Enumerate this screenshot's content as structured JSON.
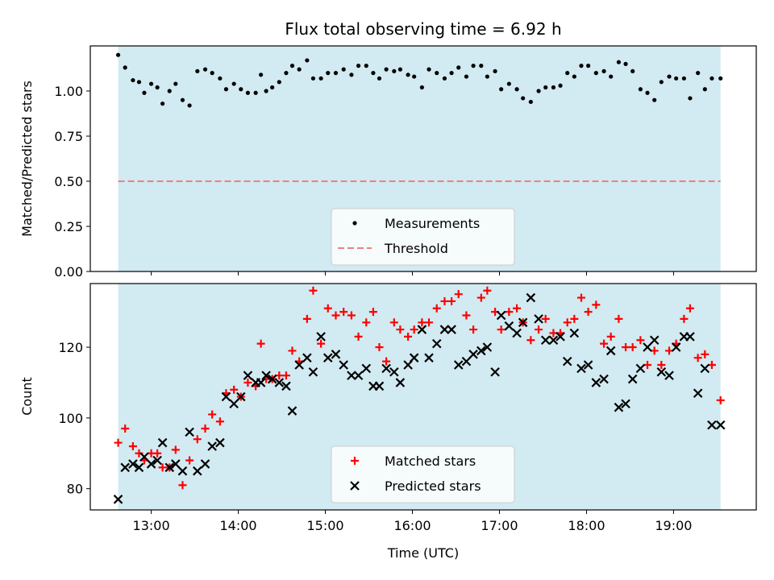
{
  "chart_data": [
    {
      "type": "scatter",
      "title": "Flux total observing time = 6.92 h",
      "ylabel": "Matched/Predicted stars",
      "xlabel": "",
      "xlim": [
        12.3,
        19.95
      ],
      "ylim": [
        0.0,
        1.25
      ],
      "y_ticks": [
        "0.00",
        "0.25",
        "0.50",
        "0.75",
        "1.00"
      ],
      "x_ticks": [
        "13:00",
        "14:00",
        "15:00",
        "16:00",
        "17:00",
        "18:00",
        "19:00"
      ],
      "x_tick_labels_visible": false,
      "observing_window": [
        12.62,
        19.54
      ],
      "observing_window_color": "#add8e6",
      "legend_position": "bottom-center",
      "threshold": {
        "name": "Threshold",
        "y": 0.5,
        "color": "#f08080",
        "style": "dashed"
      },
      "series": [
        {
          "name": "Measurements",
          "marker": "dot",
          "color": "#000000",
          "x": [
            12.62,
            12.7,
            12.79,
            12.86,
            12.92,
            13.0,
            13.07,
            13.13,
            13.21,
            13.28,
            13.36,
            13.44,
            13.53,
            13.62,
            13.7,
            13.79,
            13.86,
            13.95,
            14.03,
            14.11,
            14.2,
            14.26,
            14.32,
            14.39,
            14.47,
            14.55,
            14.62,
            14.7,
            14.79,
            14.86,
            14.95,
            15.03,
            15.12,
            15.21,
            15.3,
            15.38,
            15.47,
            15.55,
            15.62,
            15.7,
            15.79,
            15.86,
            15.95,
            16.02,
            16.11,
            16.19,
            16.28,
            16.37,
            16.45,
            16.53,
            16.62,
            16.7,
            16.79,
            16.86,
            16.95,
            17.02,
            17.11,
            17.2,
            17.27,
            17.36,
            17.45,
            17.53,
            17.62,
            17.7,
            17.78,
            17.86,
            17.94,
            18.02,
            18.11,
            18.2,
            18.28,
            18.37,
            18.45,
            18.53,
            18.62,
            18.7,
            18.78,
            18.86,
            18.95,
            19.03,
            19.12,
            19.19,
            19.28,
            19.36,
            19.44,
            19.54
          ],
          "y": [
            1.2,
            1.13,
            1.06,
            1.05,
            0.99,
            1.04,
            1.02,
            0.93,
            1.0,
            1.04,
            0.95,
            0.92,
            1.11,
            1.12,
            1.1,
            1.07,
            1.01,
            1.04,
            1.01,
            0.99,
            0.99,
            1.09,
            1.0,
            1.02,
            1.05,
            1.1,
            1.14,
            1.12,
            1.17,
            1.07,
            1.07,
            1.1,
            1.1,
            1.12,
            1.09,
            1.14,
            1.14,
            1.1,
            1.07,
            1.12,
            1.11,
            1.12,
            1.09,
            1.08,
            1.02,
            1.12,
            1.1,
            1.07,
            1.1,
            1.13,
            1.08,
            1.14,
            1.14,
            1.08,
            1.11,
            1.01,
            1.04,
            1.01,
            0.96,
            0.94,
            1.0,
            1.02,
            1.02,
            1.03,
            1.1,
            1.08,
            1.14,
            1.14,
            1.1,
            1.11,
            1.08,
            1.16,
            1.15,
            1.11,
            1.01,
            0.99,
            0.95,
            1.05,
            1.08,
            1.07,
            1.07,
            0.96,
            1.1,
            1.01,
            1.07,
            1.07
          ]
        }
      ]
    },
    {
      "type": "scatter",
      "title": "",
      "ylabel": "Count",
      "xlabel": "Time (UTC)",
      "xlim": [
        12.3,
        19.95
      ],
      "ylim": [
        74,
        138
      ],
      "y_ticks": [
        "80",
        "100",
        "120"
      ],
      "x_ticks": [
        "13:00",
        "14:00",
        "15:00",
        "16:00",
        "17:00",
        "18:00",
        "19:00"
      ],
      "x_tick_values": [
        13,
        14,
        15,
        16,
        17,
        18,
        19
      ],
      "observing_window": [
        12.62,
        19.54
      ],
      "observing_window_color": "#add8e6",
      "legend_position": "bottom-center",
      "series": [
        {
          "name": "Matched stars",
          "marker": "plus",
          "color": "#ff0000",
          "x": [
            12.62,
            12.7,
            12.79,
            12.86,
            12.92,
            13.0,
            13.07,
            13.13,
            13.21,
            13.28,
            13.36,
            13.44,
            13.53,
            13.62,
            13.7,
            13.79,
            13.86,
            13.95,
            14.03,
            14.11,
            14.2,
            14.26,
            14.32,
            14.39,
            14.47,
            14.55,
            14.62,
            14.7,
            14.79,
            14.86,
            14.95,
            15.03,
            15.12,
            15.21,
            15.3,
            15.38,
            15.47,
            15.55,
            15.62,
            15.7,
            15.79,
            15.86,
            15.95,
            16.02,
            16.11,
            16.19,
            16.28,
            16.37,
            16.45,
            16.53,
            16.62,
            16.7,
            16.79,
            16.86,
            16.95,
            17.02,
            17.11,
            17.2,
            17.27,
            17.36,
            17.45,
            17.53,
            17.62,
            17.7,
            17.78,
            17.86,
            17.94,
            18.02,
            18.11,
            18.2,
            18.28,
            18.37,
            18.45,
            18.53,
            18.62,
            18.7,
            18.78,
            18.86,
            18.95,
            19.03,
            19.12,
            19.19,
            19.28,
            19.36,
            19.44,
            19.54
          ],
          "y": [
            93,
            97,
            92,
            90,
            88,
            90,
            90,
            86,
            86,
            91,
            81,
            88,
            94,
            97,
            101,
            99,
            107,
            108,
            106,
            110,
            109,
            121,
            111,
            111,
            112,
            112,
            119,
            116,
            128,
            136,
            121,
            131,
            129,
            130,
            129,
            123,
            127,
            130,
            120,
            116,
            127,
            125,
            123,
            125,
            127,
            127,
            131,
            133,
            133,
            135,
            129,
            125,
            134,
            136,
            130,
            125,
            130,
            131,
            127,
            122,
            125,
            128,
            124,
            124,
            127,
            128,
            134,
            130,
            132,
            121,
            123,
            128,
            120,
            120,
            122,
            115,
            119,
            115,
            119,
            121,
            128,
            131,
            117,
            118,
            115,
            105
          ]
        },
        {
          "name": "Predicted stars",
          "marker": "x",
          "color": "#000000",
          "x": [
            12.62,
            12.7,
            12.79,
            12.86,
            12.92,
            13.0,
            13.07,
            13.13,
            13.21,
            13.28,
            13.36,
            13.44,
            13.53,
            13.62,
            13.7,
            13.79,
            13.86,
            13.95,
            14.03,
            14.11,
            14.2,
            14.26,
            14.32,
            14.39,
            14.47,
            14.55,
            14.62,
            14.7,
            14.79,
            14.86,
            14.95,
            15.03,
            15.12,
            15.21,
            15.3,
            15.38,
            15.47,
            15.55,
            15.62,
            15.7,
            15.79,
            15.86,
            15.95,
            16.02,
            16.11,
            16.19,
            16.28,
            16.37,
            16.45,
            16.53,
            16.62,
            16.7,
            16.79,
            16.86,
            16.95,
            17.02,
            17.11,
            17.2,
            17.27,
            17.36,
            17.45,
            17.53,
            17.62,
            17.7,
            17.78,
            17.86,
            17.94,
            18.02,
            18.11,
            18.2,
            18.28,
            18.37,
            18.45,
            18.53,
            18.62,
            18.7,
            18.78,
            18.86,
            18.95,
            19.03,
            19.12,
            19.19,
            19.28,
            19.36,
            19.44,
            19.54
          ],
          "y": [
            77,
            86,
            87,
            86,
            89,
            87,
            88,
            93,
            86,
            87,
            85,
            96,
            85,
            87,
            92,
            93,
            106,
            104,
            106,
            112,
            110,
            110,
            112,
            111,
            110,
            109,
            102,
            115,
            117,
            113,
            123,
            117,
            118,
            115,
            112,
            112,
            114,
            109,
            109,
            114,
            113,
            110,
            115,
            117,
            125,
            117,
            121,
            125,
            125,
            115,
            116,
            118,
            119,
            120,
            113,
            129,
            126,
            124,
            127,
            134,
            128,
            122,
            122,
            123,
            116,
            124,
            114,
            115,
            110,
            111,
            119,
            103,
            104,
            111,
            114,
            120,
            122,
            113,
            112,
            120,
            123,
            123,
            107,
            114,
            98,
            98
          ]
        }
      ]
    }
  ]
}
